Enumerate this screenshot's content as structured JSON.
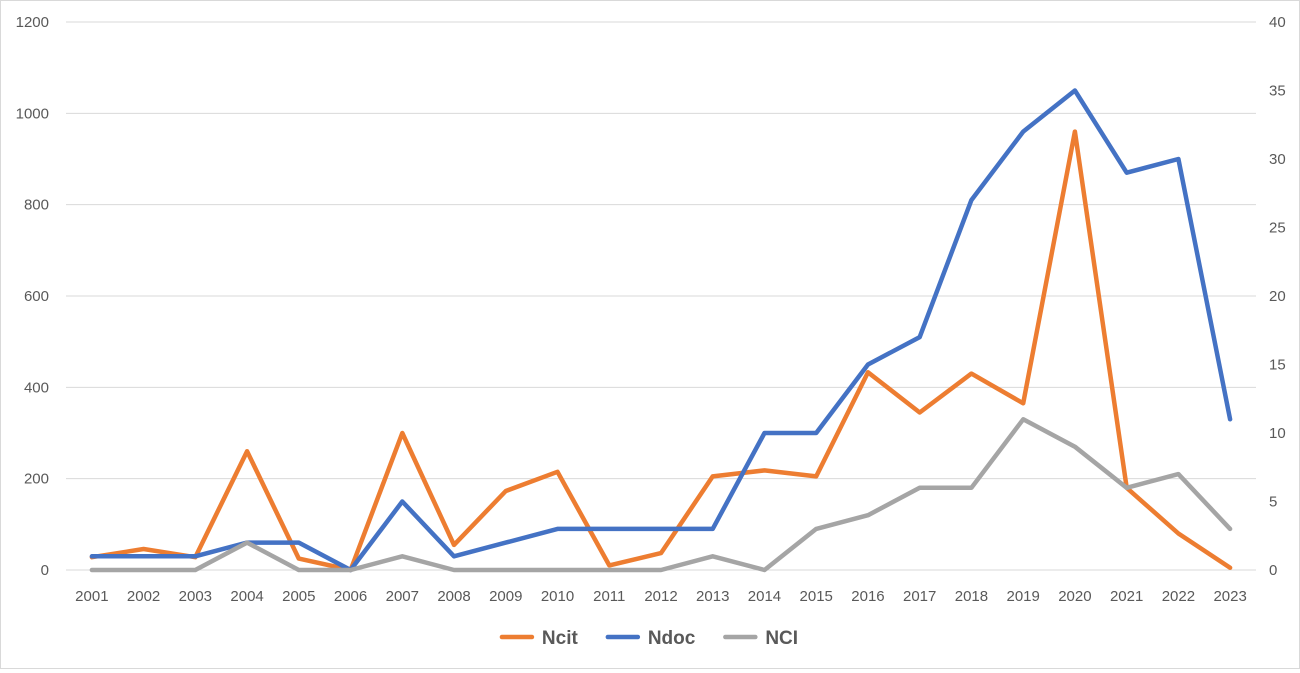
{
  "chart_data": {
    "type": "line",
    "title": "",
    "xlabel": "",
    "ylabel": "",
    "categories": [
      "2001",
      "2002",
      "2003",
      "2004",
      "2005",
      "2006",
      "2007",
      "2008",
      "2009",
      "2010",
      "2011",
      "2012",
      "2013",
      "2014",
      "2015",
      "2016",
      "2017",
      "2018",
      "2019",
      "2020",
      "2021",
      "2022",
      "2023"
    ],
    "y_left": {
      "min": 0,
      "max": 1200,
      "ticks": [
        "0",
        "200",
        "400",
        "600",
        "800",
        "1000",
        "1200"
      ]
    },
    "y_right": {
      "min": 0,
      "max": 40,
      "ticks": [
        "0",
        "5",
        "10",
        "15",
        "20",
        "25",
        "30",
        "35",
        "40"
      ]
    },
    "grid": true,
    "legend_position": "bottom",
    "series": [
      {
        "name": "Ncit",
        "axis": "left",
        "color": "#ED7D31",
        "values": [
          28,
          46,
          28,
          260,
          25,
          0,
          300,
          55,
          173,
          215,
          10,
          37,
          205,
          218,
          205,
          433,
          345,
          430,
          365,
          960,
          180,
          80,
          5
        ]
      },
      {
        "name": "Ndoc",
        "axis": "right",
        "color": "#4472C4",
        "values": [
          1,
          1,
          1,
          2,
          2,
          0,
          5,
          1,
          2,
          3,
          3,
          3,
          3,
          10,
          10,
          15,
          17,
          27,
          32,
          35,
          29,
          30,
          11
        ]
      },
      {
        "name": "NCI",
        "axis": "right",
        "color": "#A5A5A5",
        "values": [
          0,
          0,
          0,
          2,
          0,
          0,
          1,
          0,
          0,
          0,
          0,
          0,
          1,
          0,
          3,
          4,
          6,
          6,
          11,
          9,
          6,
          7,
          3
        ]
      }
    ]
  }
}
